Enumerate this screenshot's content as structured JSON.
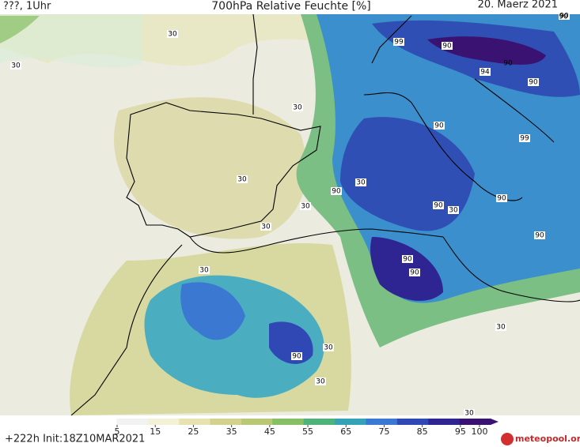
{
  "header": {
    "left": "???, 1Uhr",
    "title": "700hPa Relative Feuchte [%]",
    "right": "20. Maerz 2021"
  },
  "colorbar": {
    "ticks": [
      5,
      15,
      25,
      35,
      45,
      55,
      65,
      75,
      85,
      95,
      100
    ],
    "colors": [
      "#ffffff",
      "#f2f2f2",
      "#f3f1d6",
      "#e6e3b0",
      "#d2d28c",
      "#b8c874",
      "#86bf64",
      "#4fb27a",
      "#35a2b8",
      "#3a78d2",
      "#2f48b4",
      "#2e2592",
      "#3a1372"
    ]
  },
  "contour_labels": [
    "30",
    "30",
    "30",
    "30",
    "30",
    "30",
    "30",
    "30",
    "30",
    "30",
    "30",
    "30",
    "30",
    "90",
    "90",
    "99",
    "90",
    "94",
    "90",
    "90",
    "99",
    "90",
    "90",
    "90",
    "90",
    "90",
    "90",
    "90",
    "90"
  ],
  "footer": {
    "run": "+222h Init:18Z10MAR2021",
    "brand": "meteopool.org"
  }
}
